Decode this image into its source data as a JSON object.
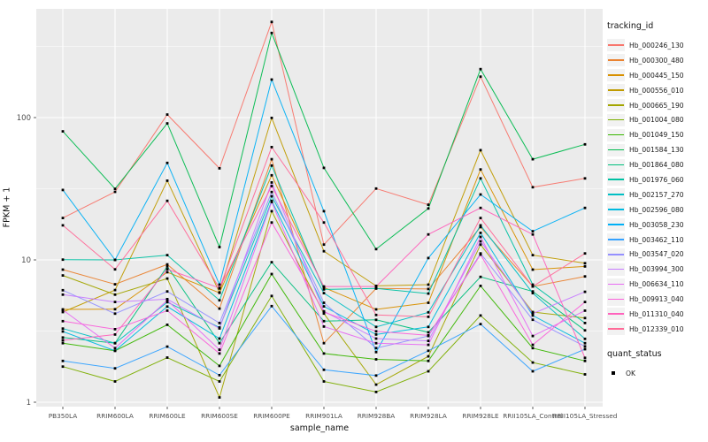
{
  "chart_data": {
    "type": "line",
    "title": "",
    "xlabel": "sample_name",
    "ylabel": "FPKM + 1",
    "y_scale": "log10",
    "y_ticks": [
      1,
      10,
      100
    ],
    "ylim": [
      1,
      600
    ],
    "grid": true,
    "legend_position": "right",
    "panel_bg": "#EBEBEB",
    "grid_color": "#FFFFFF",
    "tick_label_color": "#4D4D4D",
    "marker_color": "#000000",
    "categories": [
      "PB350LA",
      "RRIM600LA",
      "RRIM600LE",
      "RRIM600SE",
      "RRIM600PE",
      "RRIM901LA",
      "RRIM928BA",
      "RRIM928LA",
      "RRIM928LE",
      "RRII105LA_Control",
      "RRII105LA_Stressed"
    ],
    "series": [
      {
        "name": "Hb_000246_130",
        "color": "#F8766D",
        "values": [
          19.7,
          30.1,
          105,
          44,
          470,
          12.8,
          31.7,
          24.4,
          194,
          32.4,
          37.4
        ]
      },
      {
        "name": "Hb_000300_480",
        "color": "#EA8331",
        "values": [
          8.55,
          6.74,
          9.3,
          4.55,
          51,
          2.6,
          6.3,
          6.25,
          17.0,
          6.5,
          7.65
        ]
      },
      {
        "name": "Hb_000445_150",
        "color": "#D89000",
        "values": [
          4.49,
          4.5,
          8.2,
          5.87,
          39.3,
          6.4,
          4.49,
          5.0,
          43.2,
          8.55,
          9.0
        ]
      },
      {
        "name": "Hb_000556_010",
        "color": "#C09B00",
        "values": [
          4.3,
          6.14,
          36,
          5.9,
          99.5,
          11.5,
          6.57,
          6.7,
          59,
          10.8,
          9.47
        ]
      },
      {
        "name": "Hb_000665_190",
        "color": "#A3A500",
        "values": [
          7.77,
          5.7,
          7.4,
          1.08,
          22,
          4.2,
          1.33,
          2.1,
          12.8,
          4.3,
          3.9
        ]
      },
      {
        "name": "Hb_001004_080",
        "color": "#7CAE00",
        "values": [
          1.78,
          1.4,
          2.06,
          1.4,
          5.58,
          1.4,
          1.18,
          1.65,
          4.07,
          1.9,
          1.57
        ]
      },
      {
        "name": "Hb_001049_150",
        "color": "#39B600",
        "values": [
          2.6,
          2.3,
          3.5,
          1.8,
          7.96,
          2.2,
          2.0,
          1.95,
          6.57,
          2.4,
          1.95
        ]
      },
      {
        "name": "Hb_001584_130",
        "color": "#00BB4E",
        "values": [
          80,
          31.6,
          91,
          12.3,
          393,
          44.3,
          11.9,
          23,
          219,
          51,
          64.8
        ]
      },
      {
        "name": "Hb_001864_080",
        "color": "#00BF7D",
        "values": [
          2.85,
          2.6,
          9.0,
          2.6,
          9.63,
          3.71,
          3.79,
          3.1,
          7.6,
          6.0,
          3.2
        ]
      },
      {
        "name": "Hb_001976_060",
        "color": "#00C1A3",
        "values": [
          10.05,
          10.0,
          10.8,
          5.2,
          46,
          6.2,
          6.3,
          5.8,
          37.4,
          6.7,
          3.6
        ]
      },
      {
        "name": "Hb_002157_270",
        "color": "#00BFC4",
        "values": [
          3.29,
          2.6,
          5.05,
          3.35,
          28,
          5.84,
          3.38,
          4.28,
          17.5,
          5.84,
          2.79
        ]
      },
      {
        "name": "Hb_002596_080",
        "color": "#00BAE0",
        "values": [
          3.14,
          2.3,
          4.7,
          2.8,
          26,
          4.71,
          2.99,
          3.38,
          15.5,
          4.07,
          2.6
        ]
      },
      {
        "name": "Hb_003058_230",
        "color": "#00B0F6",
        "values": [
          31,
          10.0,
          48,
          6.7,
          185,
          22,
          2.25,
          10.3,
          28.8,
          15.9,
          23.2
        ]
      },
      {
        "name": "Hb_003462_110",
        "color": "#35A2FF",
        "values": [
          1.95,
          1.73,
          2.46,
          1.55,
          4.73,
          1.69,
          1.54,
          2.3,
          3.54,
          1.65,
          2.36
        ]
      },
      {
        "name": "Hb_003547_020",
        "color": "#9590FF",
        "values": [
          6.12,
          4.19,
          6.0,
          3.6,
          30,
          5.0,
          2.4,
          2.92,
          11.1,
          3.8,
          2.47
        ]
      },
      {
        "name": "Hb_003994_300",
        "color": "#C77CFF",
        "values": [
          5.7,
          5.06,
          5.3,
          3.3,
          35,
          4.35,
          2.8,
          2.7,
          13.5,
          4.2,
          5.97
        ]
      },
      {
        "name": "Hb_006634_110",
        "color": "#E76BF3",
        "values": [
          4.45,
          2.4,
          5.2,
          2.34,
          25.5,
          3.4,
          2.6,
          2.53,
          14.5,
          2.92,
          4.4
        ]
      },
      {
        "name": "Hb_009913_040",
        "color": "#FA62DB",
        "values": [
          3.71,
          3.26,
          4.4,
          2.2,
          18.3,
          4.3,
          3.15,
          2.95,
          10.9,
          2.53,
          5.06
        ]
      },
      {
        "name": "Hb_011310_040",
        "color": "#FF62BC",
        "values": [
          2.72,
          2.99,
          8.6,
          6.35,
          33,
          6.5,
          6.5,
          15.1,
          23.2,
          15.1,
          2.05
        ]
      },
      {
        "name": "Hb_012339_010",
        "color": "#FF6A98",
        "values": [
          17.5,
          8.58,
          26,
          6.3,
          62,
          18.3,
          4.1,
          3.98,
          19.7,
          6.5,
          11.1
        ]
      }
    ]
  },
  "legend": {
    "tracking_title": "tracking_id",
    "quant_title": "quant_status",
    "quant_ok_label": "OK",
    "quant_marker_color": "#000000",
    "key_bg": "#F2F2F2"
  }
}
